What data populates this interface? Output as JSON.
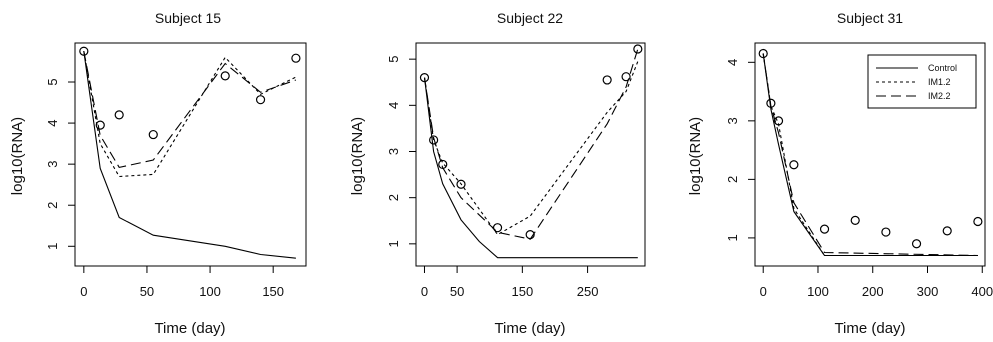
{
  "chart_data": [
    {
      "type": "line",
      "title": "Subject 15",
      "xlabel": "Time (day)",
      "ylabel": "log10(RNA)",
      "xlim": [
        -7,
        176
      ],
      "ylim": [
        0.52,
        5.95
      ],
      "x_ticks": [
        0,
        50,
        100,
        150
      ],
      "y_ticks": [
        1,
        2,
        3,
        4,
        5
      ],
      "observed": {
        "marker": "circle",
        "x": [
          0,
          13,
          28,
          55,
          112,
          140,
          168
        ],
        "y": [
          5.75,
          3.95,
          4.2,
          3.72,
          5.15,
          4.57,
          5.58
        ]
      },
      "series": [
        {
          "name": "Control",
          "dash": "solid",
          "x": [
            0,
            13,
            28,
            55,
            112,
            140,
            168
          ],
          "y": [
            5.75,
            2.9,
            1.7,
            1.27,
            1.0,
            0.8,
            0.71
          ]
        },
        {
          "name": "IM1.2",
          "dash": "dotted",
          "x": [
            0,
            13,
            28,
            55,
            112,
            140,
            168
          ],
          "y": [
            5.75,
            3.5,
            2.7,
            2.75,
            5.6,
            4.7,
            5.12
          ]
        },
        {
          "name": "IM2.2",
          "dash": "dashed",
          "x": [
            0,
            13,
            28,
            55,
            112,
            140,
            168
          ],
          "y": [
            5.75,
            3.7,
            2.92,
            3.1,
            5.45,
            4.75,
            5.05
          ]
        }
      ],
      "legend": null
    },
    {
      "type": "line",
      "title": "Subject 22",
      "xlabel": "Time (day)",
      "ylabel": "log10(RNA)",
      "xlim": [
        -13,
        338
      ],
      "ylim": [
        0.52,
        5.35
      ],
      "x_ticks": [
        0,
        50,
        150,
        250
      ],
      "y_ticks": [
        1,
        2,
        3,
        4,
        5
      ],
      "observed": {
        "marker": "circle",
        "x": [
          0,
          14,
          28,
          56,
          112,
          162,
          280,
          309,
          327
        ],
        "y": [
          4.6,
          3.25,
          2.72,
          2.29,
          1.35,
          1.2,
          4.55,
          4.62,
          5.22
        ]
      },
      "series": [
        {
          "name": "Control",
          "dash": "solid",
          "x": [
            0,
            14,
            28,
            56,
            84,
            112,
            140,
            327
          ],
          "y": [
            4.6,
            3.0,
            2.3,
            1.52,
            1.05,
            0.7,
            0.7,
            0.7
          ]
        },
        {
          "name": "IM1.2",
          "dash": "dotted",
          "x": [
            0,
            14,
            28,
            56,
            112,
            162,
            280,
            309,
            327
          ],
          "y": [
            4.6,
            3.25,
            2.75,
            2.3,
            1.2,
            1.6,
            3.85,
            4.3,
            4.95
          ]
        },
        {
          "name": "IM2.2",
          "dash": "dashed",
          "x": [
            0,
            14,
            28,
            56,
            112,
            162,
            280,
            309,
            327
          ],
          "y": [
            4.6,
            3.3,
            2.65,
            2.0,
            1.25,
            1.1,
            3.6,
            4.4,
            5.22
          ]
        }
      ],
      "legend": null
    },
    {
      "type": "line",
      "title": "Subject 31",
      "xlabel": "Time (day)",
      "ylabel": "log10(RNA)",
      "xlim": [
        -15,
        405
      ],
      "ylim": [
        0.52,
        4.33
      ],
      "x_ticks": [
        0,
        100,
        200,
        300,
        400
      ],
      "y_ticks": [
        1,
        2,
        3,
        4
      ],
      "observed": {
        "marker": "circle",
        "x": [
          0,
          14,
          28,
          56,
          112,
          168,
          224,
          280,
          336,
          392
        ],
        "y": [
          4.15,
          3.3,
          3.0,
          2.25,
          1.15,
          1.3,
          1.1,
          0.9,
          1.12,
          1.28
        ]
      },
      "series": [
        {
          "name": "Control",
          "dash": "solid",
          "x": [
            0,
            14,
            28,
            56,
            112,
            392
          ],
          "y": [
            4.15,
            3.2,
            2.6,
            1.45,
            0.7,
            0.7
          ]
        },
        {
          "name": "IM1.2",
          "dash": "dotted",
          "x": [
            0,
            14,
            28,
            56,
            112,
            392
          ],
          "y": [
            4.15,
            3.25,
            2.95,
            1.5,
            0.7,
            0.7
          ]
        },
        {
          "name": "IM2.2",
          "dash": "dashed",
          "x": [
            0,
            14,
            28,
            56,
            112,
            392
          ],
          "y": [
            4.15,
            3.25,
            2.8,
            1.6,
            0.75,
            0.7
          ]
        }
      ],
      "legend": {
        "position": "top-right",
        "entries": [
          "Control",
          "IM1.2",
          "IM2.2"
        ]
      }
    }
  ]
}
